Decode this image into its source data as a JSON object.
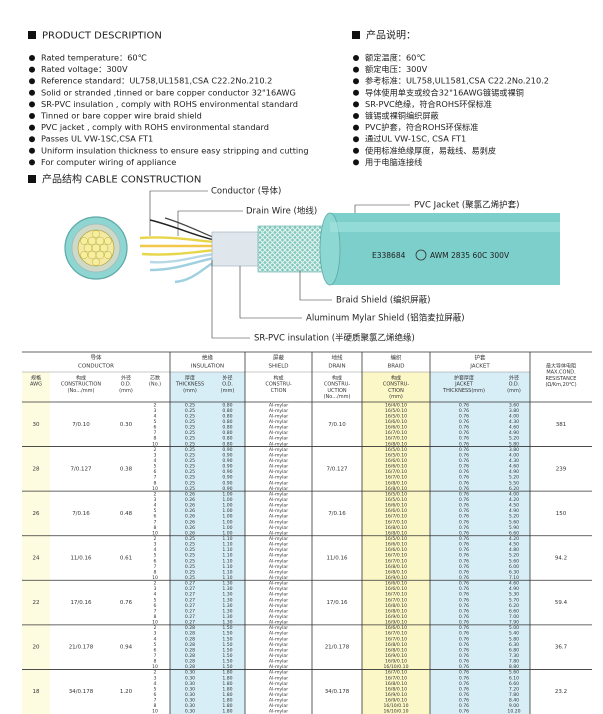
{
  "description": {
    "en": {
      "title": "PRODUCT DESCRIPTION",
      "items": [
        "Rated temperature：60℃",
        "Rated voltage：300V",
        "Reference standard：UL758,UL1581,CSA C22.2No.210.2",
        "Solid or stranded ,tinned or bare copper conductor 32\"16AWG",
        "SR-PVC insulation , comply with ROHS environmental standard",
        "Tinned or bare copper wire braid shield",
        "PVC jacket , comply with ROHS environmental standard",
        "Passes UL VW-1SC,CSA FT1",
        "Uniform insulation thickness to ensure easy stripping and cutting",
        "For computer wiring of appliance"
      ]
    },
    "cn": {
      "title": "产品说明：",
      "items": [
        "额定温度：60℃",
        "额定电压：300V",
        "参考标准：UL758,UL1581,CSA C22.2No.210.2",
        "导体使用单支或绞合32\"16AWG镀锡或裸铜",
        "SR-PVC绝缘，符合ROHS环保标准",
        "镀锡或裸铜编织屏蔽",
        "PVC护套，符合ROHS环保标准",
        "通过UL VW-1SC, CSA FT1",
        "使用标准绝缘厚度，易裁线、易剥皮",
        "用于电脑连接线"
      ]
    }
  },
  "construction": {
    "title": "产品结构   CABLE CONSTRUCTION",
    "conductor": "Conductor (导体)",
    "drain": "Drain Wire (地线)",
    "jacket": "PVC Jacket (聚氯乙烯护套)",
    "print_file": "E338684",
    "print_rating": "AWM 2835 60C 300V",
    "braid": "Braid Shield (编织屏蔽)",
    "mylar": "Aluminum Mylar Shield (铝箔麦拉屏蔽)",
    "insulation": "SR-PVC insulation (半硬质聚氯乙烯绝缘)"
  },
  "table": {
    "sections": [
      [
        "导体",
        "CONDUCTOR"
      ],
      [
        "绝缘",
        "INSULATION"
      ],
      [
        "屏蔽",
        "SHIELD"
      ],
      [
        "地线",
        "DRAIN"
      ],
      [
        "编织",
        "BRAID"
      ],
      [
        "护套",
        "JACKET"
      ]
    ],
    "columns": [
      [
        "规格",
        "AWG"
      ],
      [
        "构成",
        "CONSTRUCTION",
        "(No.../mm)"
      ],
      [
        "外径",
        "O.D.",
        "(mm)"
      ],
      [
        "芯数",
        "(No.)"
      ],
      [
        "厚度",
        "THICKNESS",
        "(mm)"
      ],
      [
        "外径",
        "O.D.",
        "(mm)"
      ],
      [
        "构成",
        "CONSTRU-",
        "CTION"
      ],
      [
        "构成",
        "CONSTRU-",
        "UCTION",
        "(No.../mm)"
      ],
      [
        "构成",
        "CONSTRU-",
        "CTION",
        "(mm)"
      ],
      [
        "护套厚度",
        "JACKET",
        "THICKNESS(mm)"
      ],
      [
        "外径",
        "O.D.",
        "(mm)"
      ],
      [
        "最大导体电阻",
        "MAX.COND.",
        "RESISTANCE",
        "(Ω/Km,20℃)"
      ]
    ],
    "groups": [
      {
        "awg": "30",
        "construction": "7/0.10",
        "od": "0.30",
        "drain": "7/0.10",
        "resistance": "381",
        "pairs": [
          "2",
          "3",
          "4",
          "5",
          "6",
          "7",
          "8",
          "10"
        ],
        "ins_t": [
          "0.25",
          "0.25",
          "0.25",
          "0.25",
          "0.25",
          "0.25",
          "0.25",
          "0.25"
        ],
        "ins_od": [
          "0.80",
          "0.80",
          "0.80",
          "0.80",
          "0.80",
          "0.80",
          "0.80",
          "0.80"
        ],
        "shield": [
          "Al-mylar",
          "Al-mylar",
          "Al-mylar",
          "Al-mylar",
          "Al-mylar",
          "Al-mylar",
          "Al-mylar",
          "Al-mylar"
        ],
        "braid": [
          "16/4/0.10",
          "16/5/0.10",
          "16/5/0.10",
          "16/6/0.10",
          "16/6/0.10",
          "16/7/0.10",
          "16/7/0.10",
          "16/8/0.10"
        ],
        "jacket_t": [
          "0.76",
          "0.76",
          "0.76",
          "0.76",
          "0.76",
          "0.76",
          "0.76",
          "0.76"
        ],
        "jacket_od": [
          "3.60",
          "3.80",
          "4.00",
          "4.30",
          "4.60",
          "4.90",
          "5.20",
          "5.80"
        ]
      },
      {
        "awg": "28",
        "construction": "7/0.127",
        "od": "0.38",
        "drain": "7/0.127",
        "resistance": "239",
        "pairs": [
          "2",
          "3",
          "4",
          "5",
          "6",
          "7",
          "8",
          "10"
        ],
        "ins_t": [
          "0.25",
          "0.25",
          "0.25",
          "0.25",
          "0.25",
          "0.25",
          "0.25",
          "0.25"
        ],
        "ins_od": [
          "0.90",
          "0.90",
          "0.90",
          "0.90",
          "0.90",
          "0.90",
          "0.90",
          "0.90"
        ],
        "shield": [
          "Al-mylar",
          "Al-mylar",
          "Al-mylar",
          "Al-mylar",
          "Al-mylar",
          "Al-mylar",
          "Al-mylar",
          "Al-mylar"
        ],
        "braid": [
          "16/5/0.10",
          "16/5/0.10",
          "16/6/0.10",
          "16/6/0.10",
          "16/7/0.10",
          "16/7/0.10",
          "16/8/0.10",
          "16/8/0.10"
        ],
        "jacket_t": [
          "0.76",
          "0.76",
          "0.76",
          "0.76",
          "0.76",
          "0.76",
          "0.76",
          "0.76"
        ],
        "jacket_od": [
          "3.80",
          "4.00",
          "4.30",
          "4.60",
          "4.90",
          "5.20",
          "5.50",
          "6.20"
        ]
      },
      {
        "awg": "26",
        "construction": "7/0.16",
        "od": "0.48",
        "drain": "7/0.16",
        "resistance": "150",
        "pairs": [
          "2",
          "3",
          "4",
          "5",
          "6",
          "7",
          "8",
          "10"
        ],
        "ins_t": [
          "0.26",
          "0.26",
          "0.26",
          "0.26",
          "0.26",
          "0.26",
          "0.26",
          "0.26"
        ],
        "ins_od": [
          "1.00",
          "1.00",
          "1.00",
          "1.00",
          "1.00",
          "1.00",
          "1.00",
          "1.00"
        ],
        "shield": [
          "Al-mylar",
          "Al-mylar",
          "Al-mylar",
          "Al-mylar",
          "Al-mylar",
          "Al-mylar",
          "Al-mylar",
          "Al-mylar"
        ],
        "braid": [
          "16/5/0.10",
          "16/5/0.10",
          "16/6/0.10",
          "16/6/0.10",
          "16/7/0.10",
          "16/7/0.10",
          "16/8/0.10",
          "16/8/0.10"
        ],
        "jacket_t": [
          "0.76",
          "0.76",
          "0.76",
          "0.76",
          "0.76",
          "0.76",
          "0.76",
          "0.76"
        ],
        "jacket_od": [
          "4.00",
          "4.20",
          "4.50",
          "4.90",
          "5.20",
          "5.60",
          "5.90",
          "6.60"
        ]
      },
      {
        "awg": "24",
        "construction": "11/0.16",
        "od": "0.61",
        "drain": "11/0.16",
        "resistance": "94.2",
        "pairs": [
          "2",
          "3",
          "4",
          "5",
          "6",
          "7",
          "8",
          "10"
        ],
        "ins_t": [
          "0.25",
          "0.25",
          "0.25",
          "0.25",
          "0.25",
          "0.25",
          "0.25",
          "0.25"
        ],
        "ins_od": [
          "1.10",
          "1.10",
          "1.10",
          "1.10",
          "1.10",
          "1.10",
          "1.10",
          "1.10"
        ],
        "shield": [
          "Al-mylar",
          "Al-mylar",
          "Al-mylar",
          "Al-mylar",
          "Al-mylar",
          "Al-mylar",
          "Al-mylar",
          "Al-mylar"
        ],
        "braid": [
          "16/5/0.10",
          "16/6/0.10",
          "16/6/0.10",
          "16/7/0.10",
          "16/7/0.10",
          "16/8/0.10",
          "16/8/0.10",
          "16/9/0.10"
        ],
        "jacket_t": [
          "0.76",
          "0.76",
          "0.76",
          "0.76",
          "0.76",
          "0.76",
          "0.76",
          "0.76"
        ],
        "jacket_od": [
          "4.20",
          "4.50",
          "4.80",
          "5.20",
          "5.60",
          "6.00",
          "6.30",
          "7.10"
        ]
      },
      {
        "awg": "22",
        "construction": "17/0.16",
        "od": "0.76",
        "drain": "17/0.16",
        "resistance": "59.4",
        "pairs": [
          "2",
          "3",
          "4",
          "5",
          "6",
          "7",
          "8",
          "10"
        ],
        "ins_t": [
          "0.27",
          "0.27",
          "0.27",
          "0.27",
          "0.27",
          "0.27",
          "0.27",
          "0.27"
        ],
        "ins_od": [
          "1.30",
          "1.30",
          "1.30",
          "1.30",
          "1.30",
          "1.30",
          "1.30",
          "1.30"
        ],
        "shield": [
          "Al-mylar",
          "Al-mylar",
          "Al-mylar",
          "Al-mylar",
          "Al-mylar",
          "Al-mylar",
          "Al-mylar",
          "Al-mylar"
        ],
        "braid": [
          "16/6/0.10",
          "16/6/0.10",
          "16/7/0.10",
          "16/7/0.10",
          "16/8/0.10",
          "16/8/0.10",
          "16/9/0.10",
          "16/9/0.10"
        ],
        "jacket_t": [
          "0.76",
          "0.76",
          "0.76",
          "0.76",
          "0.76",
          "0.76",
          "0.76",
          "0.76"
        ],
        "jacket_od": [
          "4.60",
          "4.90",
          "5.30",
          "5.70",
          "6.20",
          "6.60",
          "7.00",
          "7.90"
        ]
      },
      {
        "awg": "20",
        "construction": "21/0.178",
        "od": "0.94",
        "drain": "21/0.178",
        "resistance": "36.7",
        "pairs": [
          "2",
          "3",
          "4",
          "5",
          "6",
          "7",
          "8",
          "10"
        ],
        "ins_t": [
          "0.28",
          "0.28",
          "0.28",
          "0.28",
          "0.28",
          "0.28",
          "0.28",
          "0.28"
        ],
        "ins_od": [
          "1.50",
          "1.50",
          "1.50",
          "1.50",
          "1.50",
          "1.50",
          "1.50",
          "1.50"
        ],
        "shield": [
          "Al-mylar",
          "Al-mylar",
          "Al-mylar",
          "Al-mylar",
          "Al-mylar",
          "Al-mylar",
          "Al-mylar",
          "Al-mylar"
        ],
        "braid": [
          "16/6/0.10",
          "16/7/0.10",
          "16/7/0.10",
          "16/8/0.10",
          "16/8/0.10",
          "16/9/0.10",
          "16/9/0.10",
          "16/10/0.10"
        ],
        "jacket_t": [
          "0.76",
          "0.76",
          "0.76",
          "0.76",
          "0.76",
          "0.76",
          "0.76",
          "0.76"
        ],
        "jacket_od": [
          "5.00",
          "5.40",
          "5.80",
          "6.30",
          "6.80",
          "7.30",
          "7.80",
          "8.80"
        ]
      },
      {
        "awg": "18",
        "construction": "34/0.178",
        "od": "1.20",
        "drain": "34/0.178",
        "resistance": "23.2",
        "pairs": [
          "2",
          "3",
          "4",
          "5",
          "6",
          "7",
          "8",
          "10"
        ],
        "ins_t": [
          "0.30",
          "0.30",
          "0.30",
          "0.30",
          "0.30",
          "0.30",
          "0.30",
          "0.30"
        ],
        "ins_od": [
          "1.80",
          "1.80",
          "1.80",
          "1.80",
          "1.80",
          "1.80",
          "1.80",
          "1.80"
        ],
        "shield": [
          "Al-mylar",
          "Al-mylar",
          "Al-mylar",
          "Al-mylar",
          "Al-mylar",
          "Al-mylar",
          "Al-mylar",
          "Al-mylar"
        ],
        "braid": [
          "16/7/0.10",
          "16/7/0.10",
          "16/8/0.10",
          "16/8/0.10",
          "16/9/0.10",
          "16/9/0.10",
          "16/10/0.10",
          "16/10/0.10"
        ],
        "jacket_t": [
          "0.76",
          "0.76",
          "0.76",
          "0.76",
          "0.76",
          "0.76",
          "0.76",
          "0.76"
        ],
        "jacket_od": [
          "5.60",
          "6.10",
          "6.60",
          "7.20",
          "7.80",
          "8.40",
          "9.00",
          "10.20"
        ]
      }
    ]
  }
}
